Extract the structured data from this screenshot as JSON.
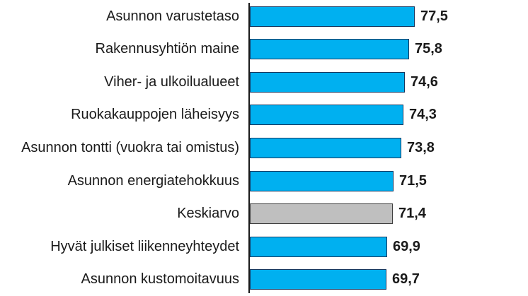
{
  "chart_data": {
    "type": "bar",
    "orientation": "horizontal",
    "title": "",
    "xlabel": "",
    "ylabel": "",
    "categories": [
      "Asunnon varustetaso",
      "Rakennusyhtiön maine",
      "Viher- ja ulkoilualueet",
      "Ruokakauppojen läheisyys",
      "Asunnon tontti (vuokra tai omistus)",
      "Asunnon energiatehokkuus",
      "Keskiarvo",
      "Hyvät julkiset liikenneyhteydet",
      "Asunnon kustomoitavuus"
    ],
    "values": [
      77.5,
      75.8,
      74.6,
      74.3,
      73.8,
      71.5,
      71.4,
      69.9,
      69.7
    ],
    "value_labels": [
      "77,5",
      "75,8",
      "74,6",
      "74,3",
      "73,8",
      "71,5",
      "71,4",
      "69,9",
      "69,7"
    ],
    "bar_colors": [
      "blue",
      "blue",
      "blue",
      "blue",
      "blue",
      "blue",
      "gray",
      "blue",
      "blue"
    ],
    "highlight_category": "Keskiarvo",
    "xlim": [
      32,
      78
    ],
    "grid": false,
    "legend": false
  },
  "colors": {
    "background": "#FFFFFF",
    "bar_blue": "#00B0F0",
    "bar_blue_border": "#17375E",
    "bar_gray": "#BFBFBF",
    "bar_gray_border": "#3F3F3F",
    "text": "#1A1A1A",
    "axis_line": "#1A1A1A"
  }
}
